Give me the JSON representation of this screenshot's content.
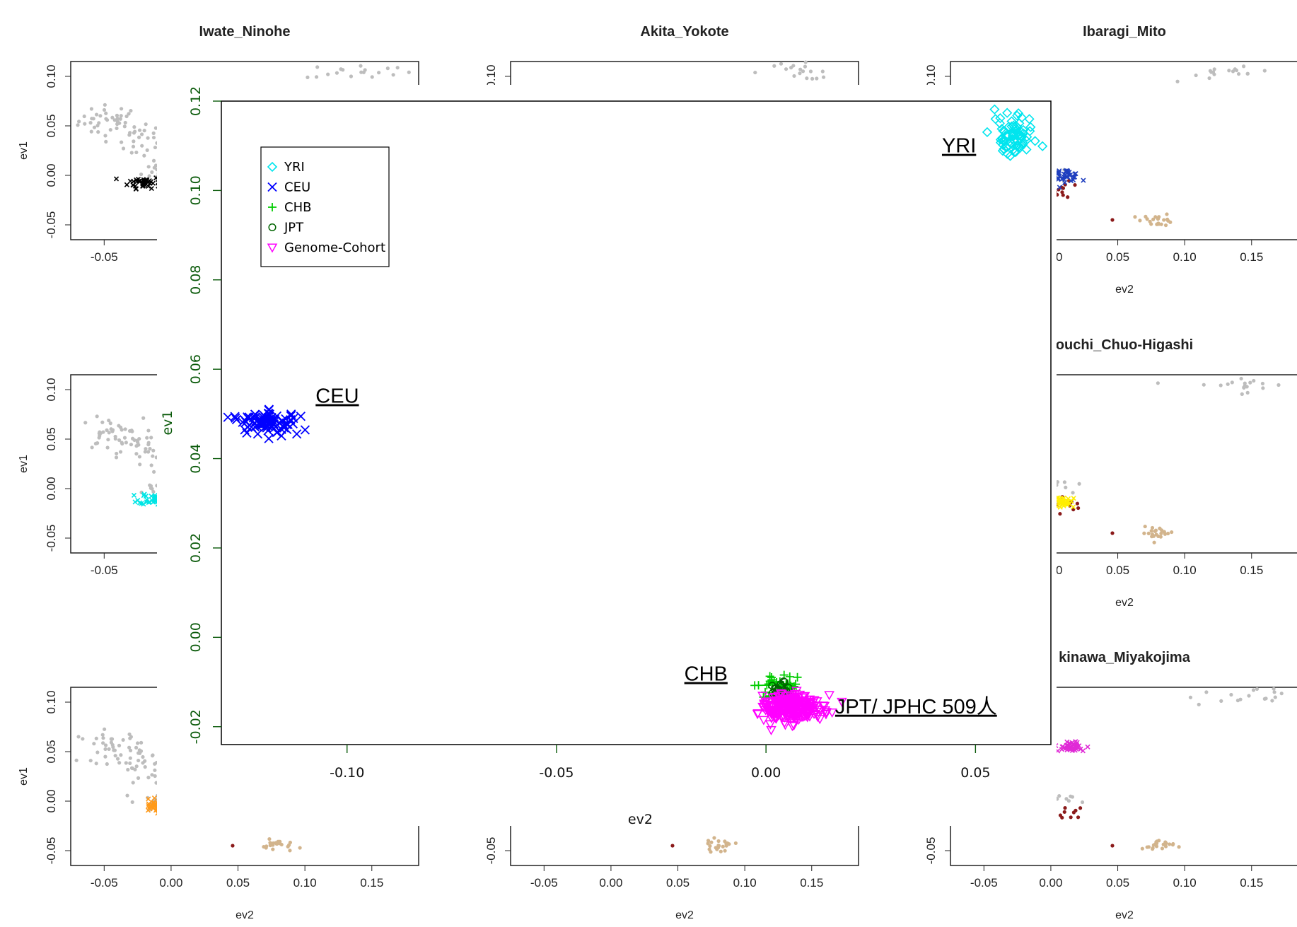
{
  "chart_data": {
    "type": "scatter",
    "background_panels": {
      "titles": [
        "Iwate_Ninohe",
        "Akita_Yokote",
        "Ibaragi_Mito",
        "",
        "",
        "ouchi_Chuo-Higashi",
        "",
        "",
        "kinawa_Miyakojima"
      ],
      "xlabel": "ev2",
      "ylabel": "ev1",
      "xticks": [
        "-0.05",
        "0.00",
        "0.05",
        "0.10",
        "0.15"
      ],
      "yticks": [
        "0.10",
        "0.05",
        "0.00",
        "-0.05"
      ],
      "xlim": [
        -0.075,
        0.185
      ],
      "ylim": [
        -0.065,
        0.115
      ],
      "highlight_colors": [
        "#000000",
        "#00e5e5",
        "#ff9a1a",
        "#1f3fbf",
        "#ffee00",
        "#e02ad6"
      ],
      "reference_color": "#bdbdbd",
      "dark_red": "#8b1a1a",
      "tan": "#d2b48c"
    },
    "main": {
      "xlabel": "ev2",
      "ylabel": "ev1",
      "xlim": [
        -0.13,
        0.068
      ],
      "ylim": [
        -0.024,
        0.12
      ],
      "xticks": [
        "-0.10",
        "-0.05",
        "0.00",
        "0.05"
      ],
      "yticks": [
        "-0.02",
        "0.00",
        "0.02",
        "0.04",
        "0.06",
        "0.08",
        "0.10",
        "0.12"
      ],
      "legend": {
        "position": "top-left",
        "entries": [
          {
            "label": "YRI",
            "color": "#00e5ee",
            "marker": "diamond"
          },
          {
            "label": "CEU",
            "color": "#0000ff",
            "marker": "x"
          },
          {
            "label": "CHB",
            "color": "#00cc00",
            "marker": "plus"
          },
          {
            "label": "JPT",
            "color": "#006400",
            "marker": "circle"
          },
          {
            "label": "Genome-Cohort",
            "color": "#ff00ff",
            "marker": "triangle-down"
          }
        ]
      },
      "series": [
        {
          "name": "YRI",
          "center": [
            0.059,
            0.112
          ],
          "spread": [
            0.0025,
            0.002
          ],
          "n": 80
        },
        {
          "name": "CEU",
          "center": [
            -0.119,
            0.048
          ],
          "spread": [
            0.0035,
            0.0012
          ],
          "n": 90,
          "outliers": [
            [
              -0.112,
              0.0455
            ]
          ]
        },
        {
          "name": "CHB",
          "center": [
            0.002,
            -0.011
          ],
          "spread": [
            0.0035,
            0.0012
          ],
          "n": 45
        },
        {
          "name": "JPT",
          "center": [
            0.0035,
            -0.012
          ],
          "spread": [
            0.002,
            0.0012
          ],
          "n": 20
        },
        {
          "name": "Genome-Cohort",
          "center": [
            0.0065,
            -0.0158
          ],
          "spread": [
            0.0035,
            0.0015
          ],
          "n": 260
        }
      ],
      "annotations": [
        {
          "text": "YRI",
          "x": 0.042,
          "y": 0.1085
        },
        {
          "text": "CEU",
          "x": -0.1075,
          "y": 0.0525
        },
        {
          "text": "CHB",
          "x": -0.0195,
          "y": -0.0097
        },
        {
          "text": "JPT/ JPHC 509人",
          "x": 0.0165,
          "y": -0.017
        }
      ]
    }
  }
}
